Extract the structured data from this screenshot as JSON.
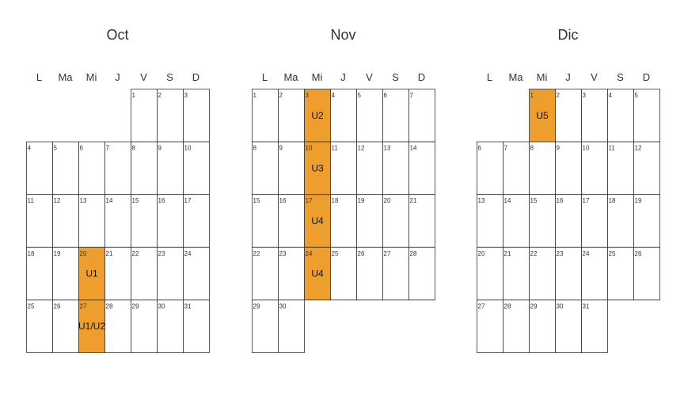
{
  "chart_data": {
    "type": "table",
    "weekday_labels": [
      "L",
      "Ma",
      "Mi",
      "J",
      "V",
      "S",
      "D"
    ],
    "highlight_color": "#ee9e2d",
    "months": [
      {
        "title": "Oct",
        "first_weekday": 4,
        "days": 31,
        "highlights": [
          {
            "day": 20,
            "label": "U1"
          },
          {
            "day": 27,
            "label": "U1/U2"
          }
        ]
      },
      {
        "title": "Nov",
        "first_weekday": 0,
        "days": 30,
        "highlights": [
          {
            "day": 3,
            "label": "U2"
          },
          {
            "day": 10,
            "label": "U3"
          },
          {
            "day": 17,
            "label": "U4"
          },
          {
            "day": 24,
            "label": "U4"
          }
        ]
      },
      {
        "title": "Dic",
        "first_weekday": 2,
        "days": 31,
        "highlights": [
          {
            "day": 1,
            "label": "U5"
          }
        ]
      }
    ]
  }
}
